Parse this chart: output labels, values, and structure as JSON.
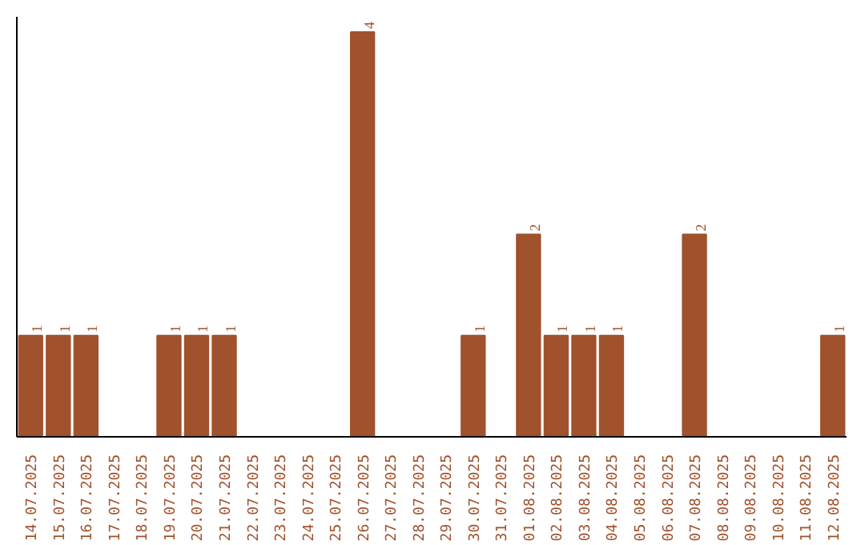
{
  "chart_data": {
    "type": "bar",
    "categories": [
      "14.07.2025",
      "15.07.2025",
      "16.07.2025",
      "17.07.2025",
      "18.07.2025",
      "19.07.2025",
      "20.07.2025",
      "21.07.2025",
      "22.07.2025",
      "23.07.2025",
      "24.07.2025",
      "25.07.2025",
      "26.07.2025",
      "27.07.2025",
      "28.07.2025",
      "29.07.2025",
      "30.07.2025",
      "31.07.2025",
      "01.08.2025",
      "02.08.2025",
      "03.08.2025",
      "04.08.2025",
      "05.08.2025",
      "06.08.2025",
      "07.08.2025",
      "08.08.2025",
      "09.08.2025",
      "10.08.2025",
      "11.08.2025",
      "12.08.2025"
    ],
    "values": [
      1,
      1,
      1,
      0,
      0,
      1,
      1,
      1,
      0,
      0,
      0,
      0,
      4,
      0,
      0,
      0,
      1,
      0,
      2,
      1,
      1,
      1,
      0,
      0,
      2,
      0,
      0,
      0,
      0,
      1
    ],
    "value_labels": [
      "1",
      "1",
      "1",
      null,
      null,
      "1",
      "1",
      "1",
      null,
      null,
      null,
      null,
      "4",
      null,
      null,
      null,
      "1",
      null,
      "2",
      "1",
      "1",
      "1",
      null,
      null,
      "2",
      null,
      null,
      null,
      null,
      "1"
    ],
    "color": "#a0522d",
    "ylim": [
      0,
      4.15
    ],
    "grid": false
  }
}
